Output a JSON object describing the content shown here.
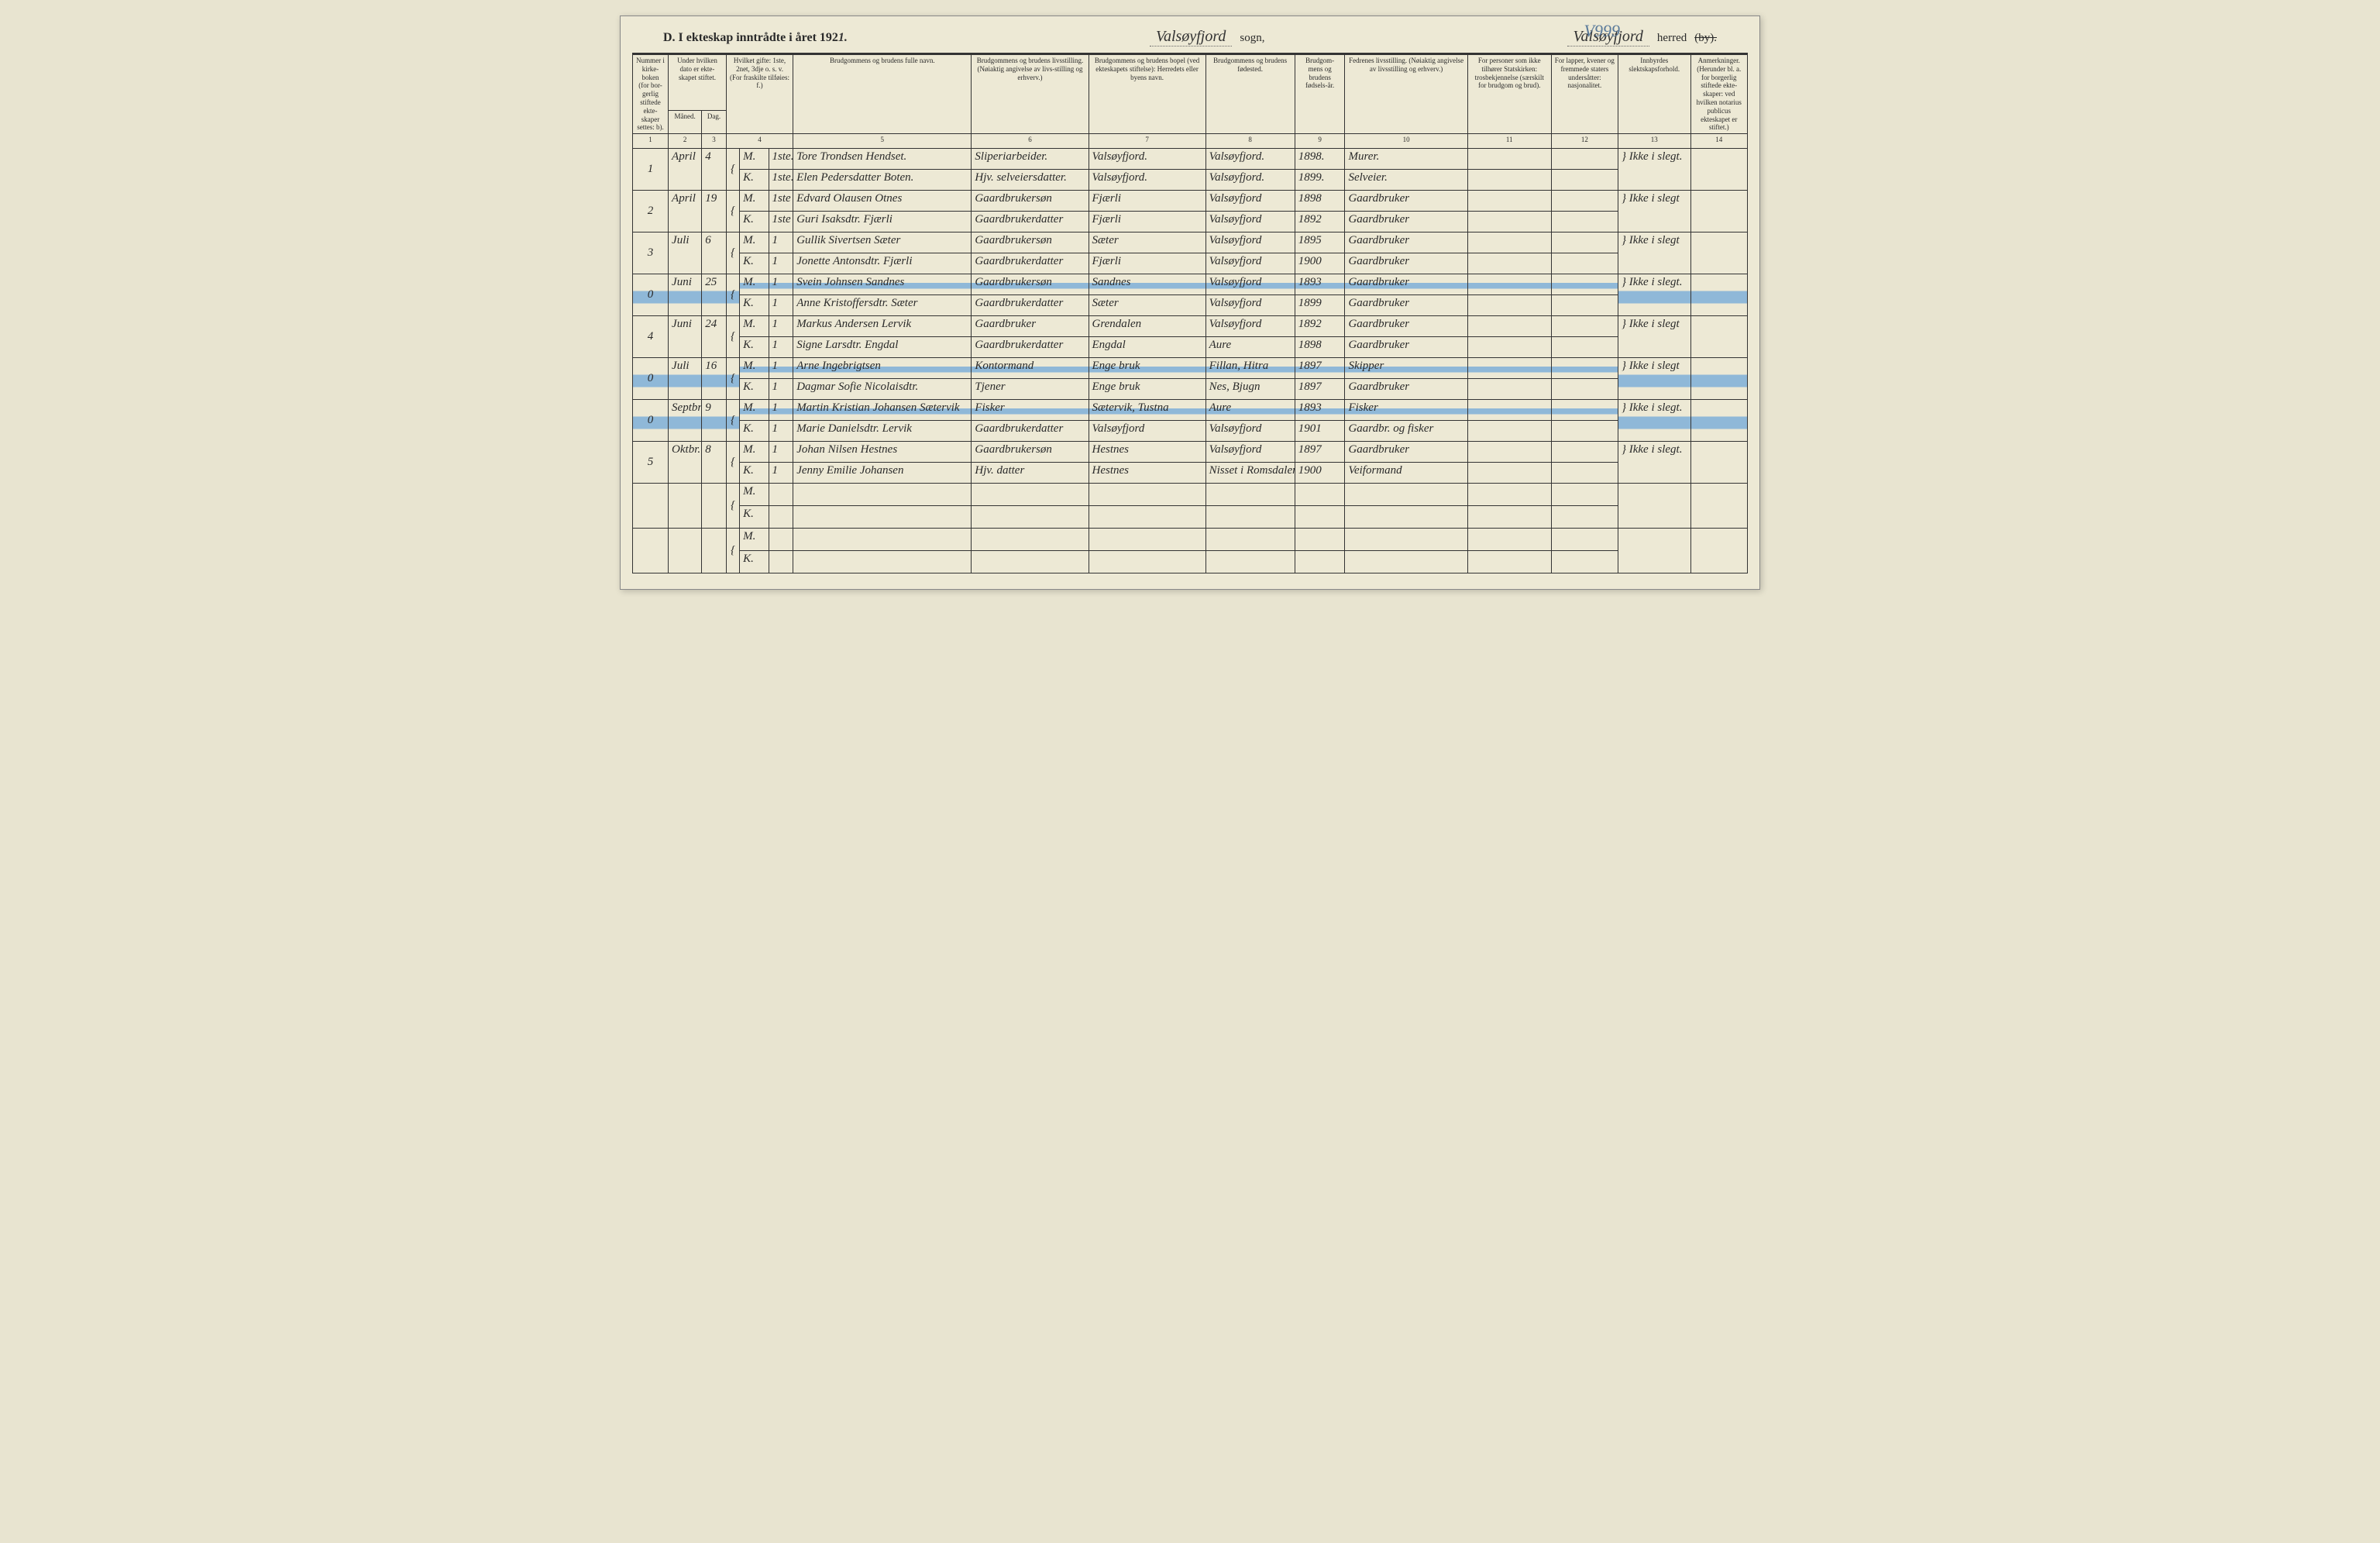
{
  "pencil_annotation": "V999",
  "header": {
    "title_prefix": "D.  I ekteskap inntrådte i året 192",
    "year_suffix": "1.",
    "sogn_value": "Valsøyfjord",
    "sogn_label": "sogn,",
    "herred_value": "Valsøyfjord",
    "herred_label_pre": "herred",
    "herred_label_strike": "(by)."
  },
  "columns": {
    "h1": "Nummer i kirke-boken (for bor-gerlig stiftede ekte-skaper settes: b).",
    "h2": "Under hvilken dato er ekte-skapet stiftet.",
    "h2a": "Måned.",
    "h2b": "Dag.",
    "h3": "Hvilket gifte: 1ste, 2net, 3dje o. s. v. (For fraskilte tilføies: f.)",
    "h4": "Brudgommens og brudens fulle navn.",
    "h5": "Brudgommens og brudens livsstilling. (Nøiaktig angivelse av livs-stilling og erhverv.)",
    "h6": "Brudgommens og brudens bopel (ved ekteskapets stiftelse): Herredets eller byens navn.",
    "h7": "Brudgommens og brudens fødested.",
    "h8": "Brudgom-mens og brudens fødsels-år.",
    "h9": "Fedrenes livsstilling. (Nøiaktig angivelse av livsstilling og erhverv.)",
    "h10": "For personer som ikke tilhører Statskirken: trosbekjennelse (særskilt for brudgom og brud).",
    "h11": "For lapper, kvener og fremmede staters undersåtter: nasjonalitet.",
    "h12": "Innbyrdes slektskapsforhold.",
    "h13": "Anmerkninger. (Herunder bl. a. for borgerlig stiftede ekte-skaper: ved hvilken notarius publicus ekteskapet er stiftet.)"
  },
  "colnums": [
    "1",
    "2",
    "3",
    "4",
    "5",
    "6",
    "7",
    "8",
    "9",
    "10",
    "11",
    "12",
    "13",
    "14"
  ],
  "mk": {
    "M": "M.",
    "K": "K."
  },
  "entries": [
    {
      "num": "1",
      "month": "April",
      "day": "4",
      "highlight": false,
      "m": {
        "gifte": "1ste.",
        "navn": "Tore Trondsen Hendset.",
        "stilling": "Sliperiarbeider.",
        "bopel": "Valsøyfjord.",
        "fodested": "Valsøyfjord.",
        "aar": "1898.",
        "far": "Murer."
      },
      "k": {
        "gifte": "1ste.",
        "navn": "Elen Pedersdatter Boten.",
        "stilling": "Hjv. selveiersdatter.",
        "bopel": "Valsøyfjord.",
        "fodested": "Valsøyfjord.",
        "aar": "1899.",
        "far": "Selveier."
      },
      "slekt": "Ikke i slegt."
    },
    {
      "num": "2",
      "month": "April",
      "day": "19",
      "highlight": false,
      "m": {
        "gifte": "1ste",
        "navn": "Edvard Olausen Otnes",
        "stilling": "Gaardbrukersøn",
        "bopel": "Fjærli",
        "fodested": "Valsøyfjord",
        "aar": "1898",
        "far": "Gaardbruker"
      },
      "k": {
        "gifte": "1ste",
        "navn": "Guri Isaksdtr. Fjærli",
        "stilling": "Gaardbrukerdatter",
        "bopel": "Fjærli",
        "fodested": "Valsøyfjord",
        "aar": "1892",
        "far": "Gaardbruker"
      },
      "slekt": "Ikke i slegt"
    },
    {
      "num": "3",
      "month": "Juli",
      "day": "6",
      "highlight": false,
      "m": {
        "gifte": "1",
        "navn": "Gullik Sivertsen Sæter",
        "stilling": "Gaardbrukersøn",
        "bopel": "Sæter",
        "fodested": "Valsøyfjord",
        "aar": "1895",
        "far": "Gaardbruker"
      },
      "k": {
        "gifte": "1",
        "navn": "Jonette Antonsdtr. Fjærli",
        "stilling": "Gaardbrukerdatter",
        "bopel": "Fjærli",
        "fodested": "Valsøyfjord",
        "aar": "1900",
        "far": "Gaardbruker"
      },
      "slekt": "Ikke i slegt"
    },
    {
      "num": "0",
      "month": "Juni",
      "day": "25",
      "highlight": true,
      "m": {
        "gifte": "1",
        "navn": "Svein Johnsen Sandnes",
        "stilling": "Gaardbrukersøn",
        "bopel": "Sandnes",
        "fodested": "Valsøyfjord",
        "aar": "1893",
        "far": "Gaardbruker"
      },
      "k": {
        "gifte": "1",
        "navn": "Anne Kristoffersdtr. Sæter",
        "stilling": "Gaardbrukerdatter",
        "bopel": "Sæter",
        "fodested": "Valsøyfjord",
        "aar": "1899",
        "far": "Gaardbruker"
      },
      "slekt": "Ikke i slegt."
    },
    {
      "num": "4",
      "month": "Juni",
      "day": "24",
      "highlight": false,
      "m": {
        "gifte": "1",
        "navn": "Markus Andersen Lervik",
        "stilling": "Gaardbruker",
        "bopel": "Grendalen",
        "fodested": "Valsøyfjord",
        "aar": "1892",
        "far": "Gaardbruker"
      },
      "k": {
        "gifte": "1",
        "navn": "Signe Larsdtr. Engdal",
        "stilling": "Gaardbrukerdatter",
        "bopel": "Engdal",
        "fodested": "Aure",
        "aar": "1898",
        "far": "Gaardbruker"
      },
      "slekt": "Ikke i slegt"
    },
    {
      "num": "0",
      "month": "Juli",
      "day": "16",
      "highlight": true,
      "m": {
        "gifte": "1",
        "navn": "Arne Ingebrigtsen",
        "stilling": "Kontormand",
        "bopel": "Enge bruk",
        "fodested": "Fillan, Hitra",
        "aar": "1897",
        "far": "Skipper"
      },
      "k": {
        "gifte": "1",
        "navn": "Dagmar Sofie Nicolaisdtr.",
        "stilling": "Tjener",
        "bopel": "Enge bruk",
        "fodested": "Nes, Bjugn",
        "aar": "1897",
        "far": "Gaardbruker"
      },
      "slekt": "Ikke i slegt"
    },
    {
      "num": "0",
      "month": "Septbr",
      "day": "9",
      "highlight": true,
      "m": {
        "gifte": "1",
        "navn": "Martin Kristian Johansen Sætervik",
        "stilling": "Fisker",
        "bopel": "Sætervik, Tustna",
        "fodested": "Aure",
        "aar": "1893",
        "far": "Fisker"
      },
      "k": {
        "gifte": "1",
        "navn": "Marie Danielsdtr. Lervik",
        "stilling": "Gaardbrukerdatter",
        "bopel": "Valsøyfjord",
        "fodested": "Valsøyfjord",
        "aar": "1901",
        "far": "Gaardbr. og fisker"
      },
      "slekt": "Ikke i slegt."
    },
    {
      "num": "5",
      "month": "Oktbr.",
      "day": "8",
      "highlight": false,
      "m": {
        "gifte": "1",
        "navn": "Johan Nilsen Hestnes",
        "stilling": "Gaardbrukersøn",
        "bopel": "Hestnes",
        "fodested": "Valsøyfjord",
        "aar": "1897",
        "far": "Gaardbruker"
      },
      "k": {
        "gifte": "1",
        "navn": "Jenny Emilie Johansen",
        "stilling": "Hjv. datter",
        "bopel": "Hestnes",
        "fodested": "Nisset i Romsdalen",
        "aar": "1900",
        "far": "Veiformand"
      },
      "slekt": "Ikke i slegt."
    }
  ],
  "style": {
    "page_bg": "#ede9d5",
    "body_bg": "#e8e4d0",
    "border": "#333333",
    "highlight_bar": "#8fb8d8",
    "text": "#2a2a2a",
    "handwritten_font": "Brush Script MT",
    "print_font": "Georgia",
    "header_fontsize": 16,
    "th_fontsize": 9,
    "data_fontsize": 15
  }
}
